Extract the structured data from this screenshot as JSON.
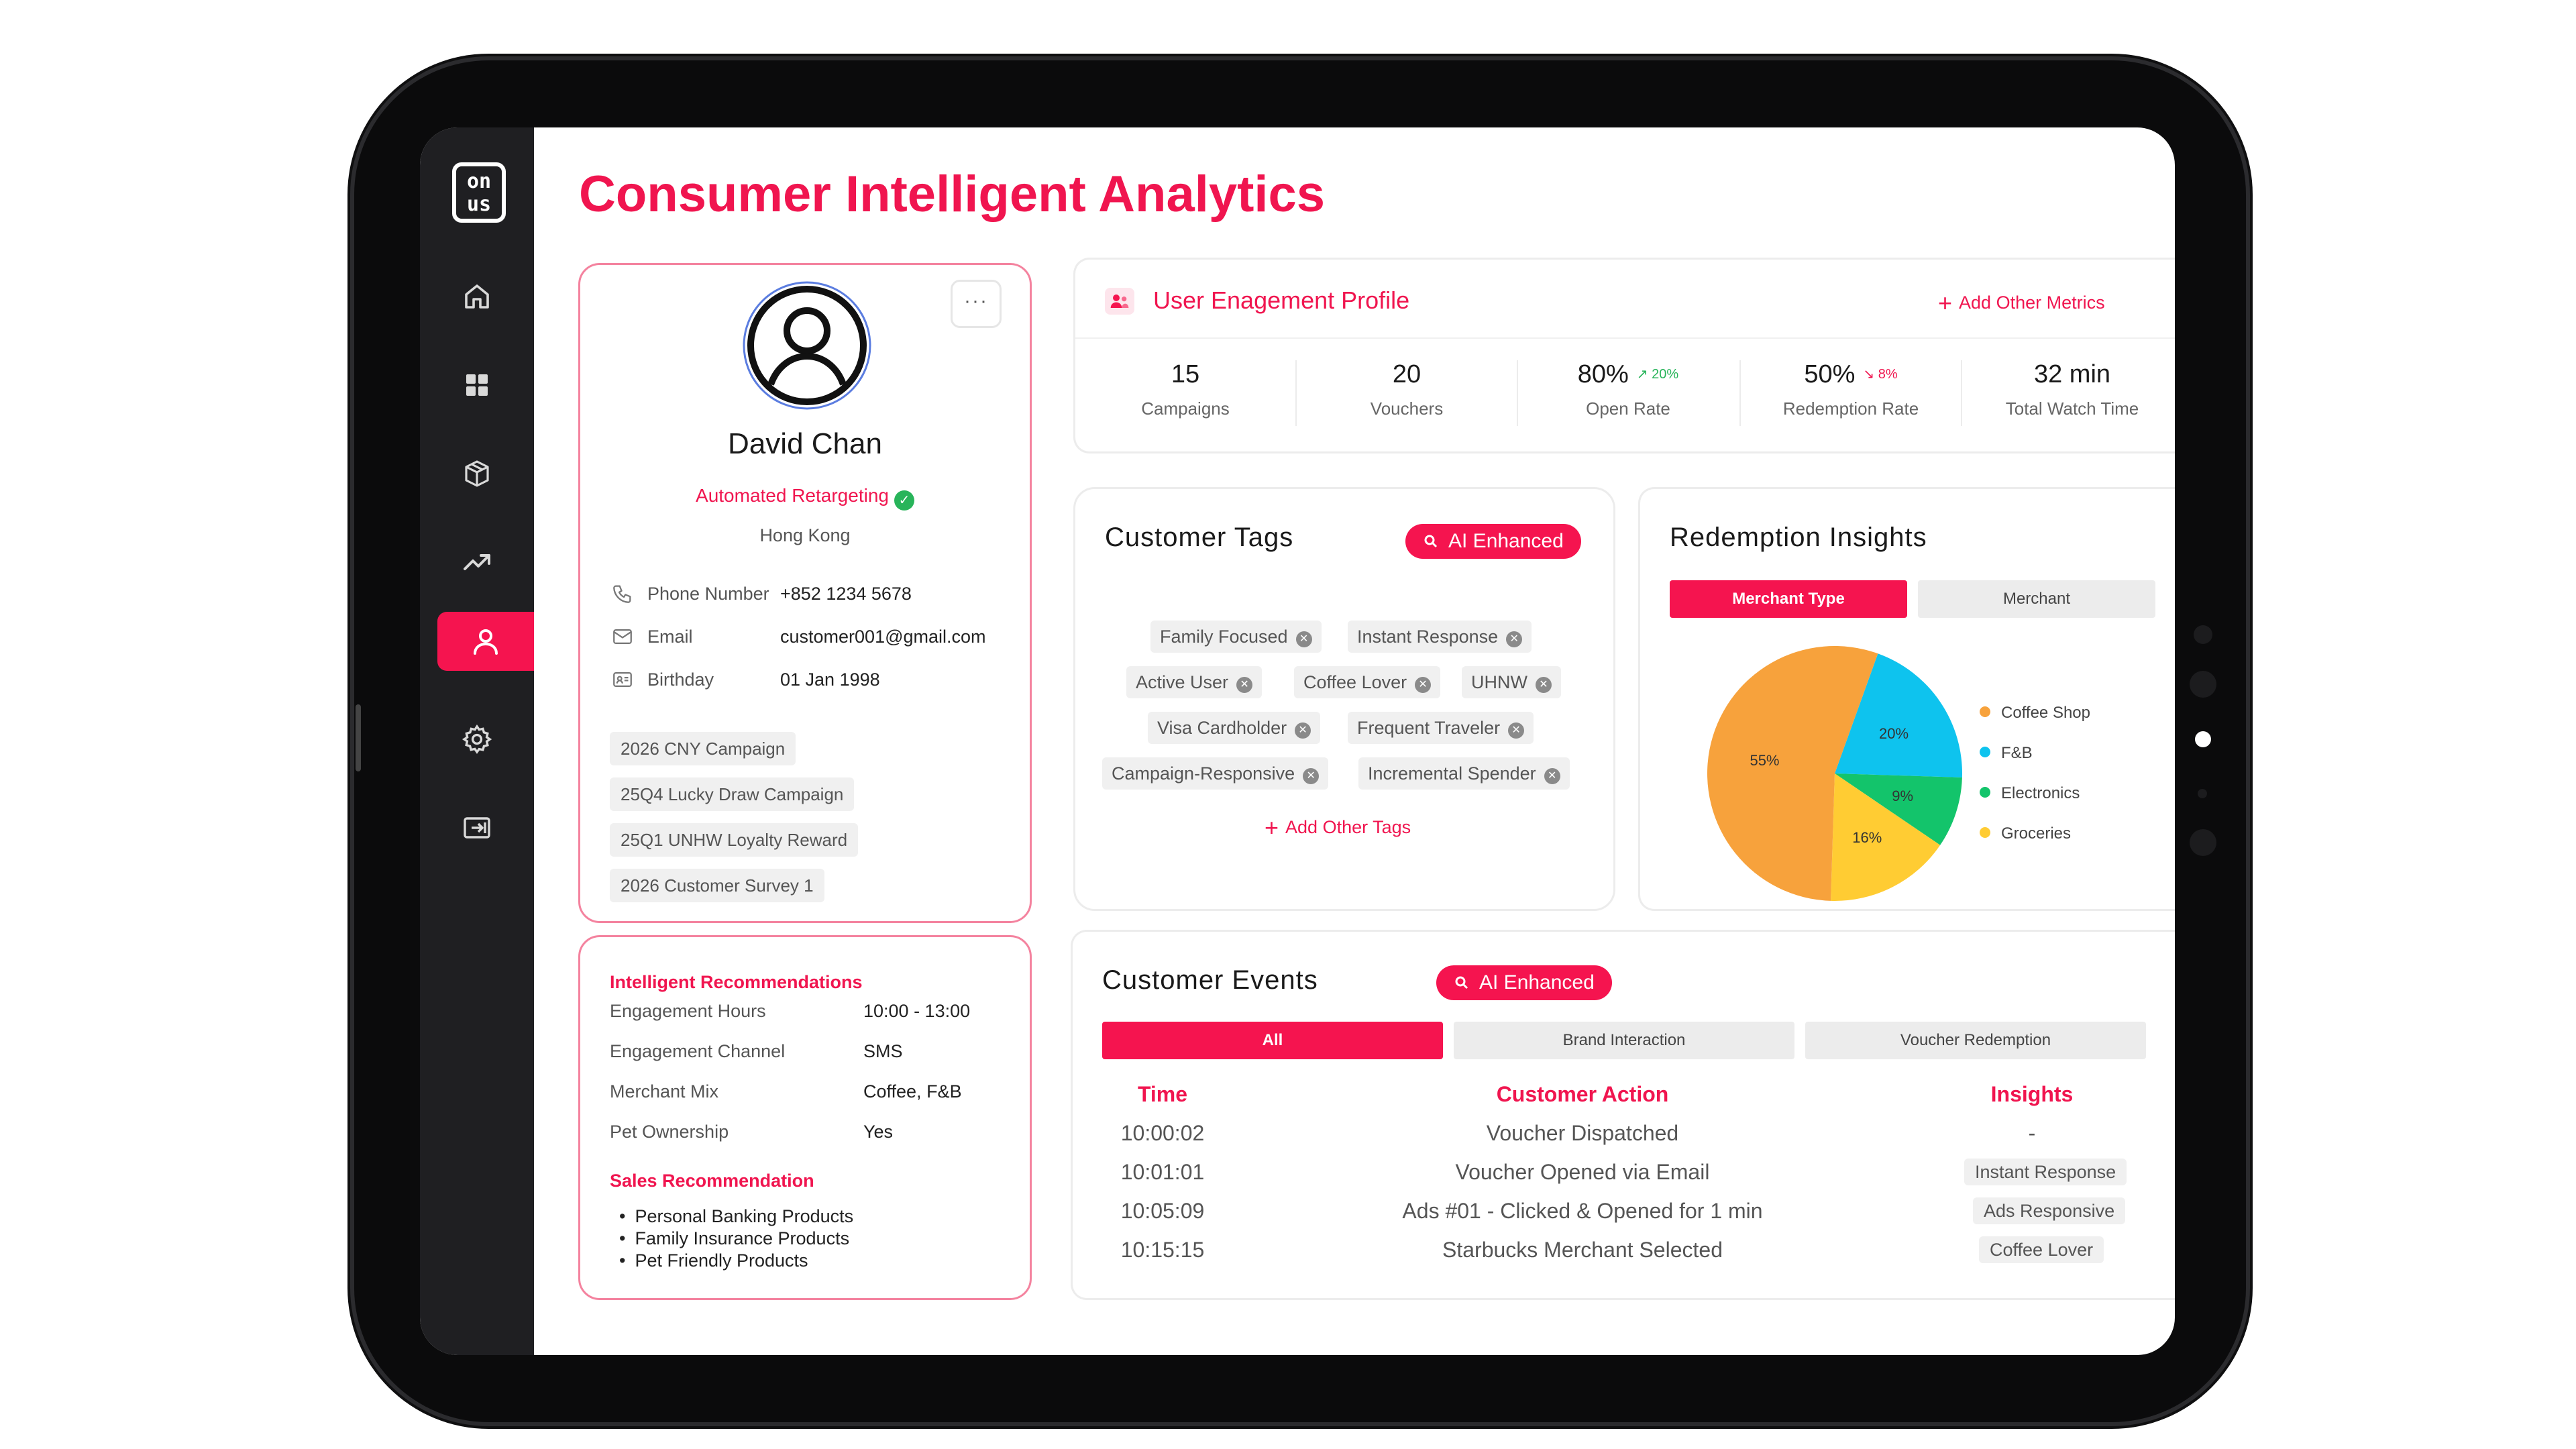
{
  "app": {
    "logo_text_top": "on",
    "logo_text_bottom": "us"
  },
  "page_title": "Consumer Intelligent Analytics",
  "sidebar": {
    "items": [
      {
        "name": "home-icon"
      },
      {
        "name": "grid-icon"
      },
      {
        "name": "box-icon"
      },
      {
        "name": "trending-icon"
      },
      {
        "name": "user-icon",
        "active": true
      },
      {
        "name": "gear-icon"
      },
      {
        "name": "sign-in-icon"
      }
    ]
  },
  "profile": {
    "menu_label": "···",
    "name": "David Chan",
    "status": "Automated Retargeting",
    "city": "Hong Kong",
    "phone_label": "Phone Number",
    "phone": "+852 1234 5678",
    "email_label": "Email",
    "email": "customer001@gmail.com",
    "birthday_label": "Birthday",
    "birthday": "01 Jan 1998",
    "campaigns": [
      "2026 CNY Campaign",
      "25Q4 Lucky Draw Campaign",
      "25Q1 UNHW Loyalty Reward",
      "2026 Customer Survey 1"
    ]
  },
  "recommendations": {
    "title": "Intelligent Recommendations",
    "rows": [
      {
        "label": "Engagement Hours",
        "value": "10:00 - 13:00"
      },
      {
        "label": "Engagement Channel",
        "value": "SMS"
      },
      {
        "label": "Merchant Mix",
        "value": "Coffee, F&B"
      },
      {
        "label": "Pet Ownership",
        "value": "Yes"
      }
    ],
    "sales_title": "Sales Recommendation",
    "sales_items": [
      "Personal Banking Products",
      "Family Insurance Products",
      "Pet Friendly Products"
    ]
  },
  "engagement": {
    "title": "User Enagement Profile",
    "add_label": "Add Other Metrics",
    "metrics": [
      {
        "value": "15",
        "label": "Campaigns",
        "delta": ""
      },
      {
        "value": "20",
        "label": "Vouchers",
        "delta": ""
      },
      {
        "value": "80%",
        "label": "Open Rate",
        "delta": "20%",
        "trend": "up"
      },
      {
        "value": "50%",
        "label": "Redemption Rate",
        "delta": "8%",
        "trend": "down"
      },
      {
        "value": "32 min",
        "label": "Total Watch Time",
        "delta": ""
      }
    ]
  },
  "tags": {
    "title": "Customer Tags",
    "ai_badge": "AI Enhanced",
    "items": [
      "Family Focused",
      "Instant Response",
      "Active User",
      "Coffee Lover",
      "UHNW",
      "Visa Cardholder",
      "Frequent Traveler",
      "Campaign-Responsive",
      "Incremental Spender"
    ],
    "add_label": "Add Other Tags"
  },
  "redemption": {
    "title": "Redemption Insights",
    "tabs": [
      "Merchant Type",
      "Merchant"
    ],
    "active_tab": 0
  },
  "chart_data": {
    "type": "pie",
    "categories": [
      "Coffee Shop",
      "F&B",
      "Electronics",
      "Groceries"
    ],
    "values": [
      55,
      20,
      9,
      16
    ],
    "labels": [
      "55%",
      "20%",
      "9%",
      "16%"
    ],
    "colors": {
      "Coffee Shop": "#f7a23c",
      "F&B": "#0ec3ee",
      "Electronics": "#13c46b",
      "Groceries": "#ffcc33"
    },
    "legend": "right"
  },
  "events": {
    "title": "Customer Events",
    "ai_badge": "AI Enhanced",
    "tabs": [
      "All",
      "Brand Interaction",
      "Voucher Redemption"
    ],
    "active_tab": 0,
    "columns": [
      "Time",
      "Customer Action",
      "Insights"
    ],
    "rows": [
      {
        "time": "10:00:02",
        "action": "Voucher Dispatched",
        "insight": "-"
      },
      {
        "time": "10:01:01",
        "action": "Voucher Opened via Email",
        "insight": "Instant Response"
      },
      {
        "time": "10:05:09",
        "action": "Ads #01 - Clicked & Opened for 1 min",
        "insight": "Ads Responsive"
      },
      {
        "time": "10:15:15",
        "action": "Starbucks Merchant Selected",
        "insight": "Coffee Lover"
      }
    ]
  },
  "theme": {
    "accent": "#f5144f",
    "sidebar": "#1f1f22"
  }
}
